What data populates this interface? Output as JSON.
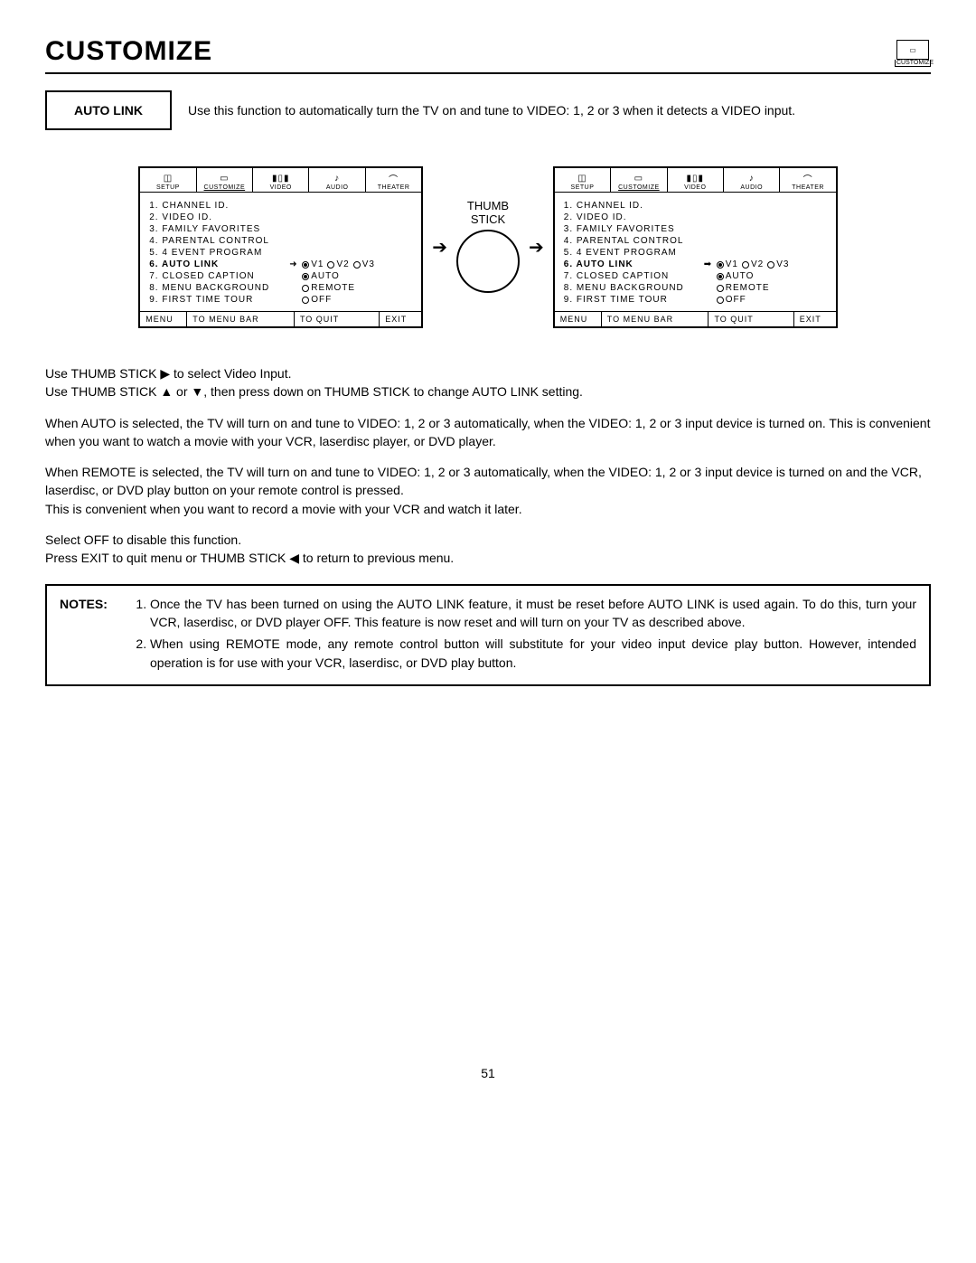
{
  "title": "CUSTOMIZE",
  "corner_label": "CUSTOMIZE",
  "intro": {
    "box_label": "AUTO LINK",
    "text": "Use this function to automatically turn the TV on and tune to VIDEO: 1, 2 or 3 when it detects a VIDEO input."
  },
  "thumb_label_top": "THUMB",
  "thumb_label_bot": "STICK",
  "tabs": [
    "SETUP",
    "CUSTOMIZE",
    "VIDEO",
    "AUDIO",
    "THEATER"
  ],
  "tab_icons": [
    "◫",
    "▭",
    "▮▯▮",
    "♪",
    "⌒"
  ],
  "menu_left": {
    "items": [
      {
        "n": "1.",
        "lab": "CHANNEL ID."
      },
      {
        "n": "2.",
        "lab": "VIDEO ID."
      },
      {
        "n": "3.",
        "lab": "FAMILY FAVORITES"
      },
      {
        "n": "4.",
        "lab": "PARENTAL CONTROL"
      },
      {
        "n": "5.",
        "lab": "4 EVENT PROGRAM"
      },
      {
        "n": "6.",
        "lab": "AUTO LINK",
        "bold": true,
        "arrow": true,
        "opts": [
          {
            "t": "V1",
            "sel": true
          },
          {
            "t": "V2"
          },
          {
            "t": "V3"
          }
        ]
      },
      {
        "n": "7.",
        "lab": "CLOSED CAPTION",
        "opts": [
          {
            "t": "AUTO",
            "sel": true
          }
        ]
      },
      {
        "n": "8.",
        "lab": "MENU BACKGROUND",
        "opts": [
          {
            "t": "REMOTE"
          }
        ]
      },
      {
        "n": "9.",
        "lab": "FIRST TIME TOUR",
        "opts": [
          {
            "t": "OFF"
          }
        ]
      }
    ]
  },
  "menu_right": {
    "items": [
      {
        "n": "1.",
        "lab": "CHANNEL ID."
      },
      {
        "n": "2.",
        "lab": "VIDEO ID."
      },
      {
        "n": "3.",
        "lab": "FAMILY FAVORITES"
      },
      {
        "n": "4.",
        "lab": "PARENTAL CONTROL"
      },
      {
        "n": "5.",
        "lab": "4 EVENT PROGRAM"
      },
      {
        "n": "6.",
        "lab": "AUTO LINK",
        "bold": true,
        "arrow": true,
        "solid_arrow": true,
        "opts": [
          {
            "t": "V1",
            "sel": true
          },
          {
            "t": "V2"
          },
          {
            "t": "V3"
          }
        ]
      },
      {
        "n": "7.",
        "lab": "CLOSED CAPTION",
        "opts": [
          {
            "t": "AUTO",
            "sel": true
          }
        ]
      },
      {
        "n": "8.",
        "lab": "MENU BACKGROUND",
        "opts": [
          {
            "t": "REMOTE"
          }
        ]
      },
      {
        "n": "9.",
        "lab": "FIRST TIME TOUR",
        "opts": [
          {
            "t": "OFF"
          }
        ]
      }
    ]
  },
  "footer": {
    "f1": "MENU",
    "f2": "TO MENU BAR",
    "f3": "TO QUIT",
    "f4": "EXIT"
  },
  "body": {
    "p1": "Use THUMB STICK ▶ to select Video Input.",
    "p2": "Use THUMB STICK ▲ or ▼, then press down on THUMB STICK to change AUTO LINK setting.",
    "p3": "When AUTO is selected, the TV will turn on and tune to VIDEO: 1, 2 or 3 automatically, when the VIDEO: 1, 2 or 3 input device is turned on. This is convenient when you want to watch a movie with your VCR, laserdisc player, or DVD player.",
    "p4": "When REMOTE is selected, the TV will turn on and tune to VIDEO: 1, 2 or 3 automatically, when the VIDEO: 1, 2 or 3 input device is turned on and the VCR, laserdisc, or DVD play button on your remote control is pressed.",
    "p5": "This is convenient when you want to record a movie with your VCR and watch it later.",
    "p6": "Select OFF to disable this function.",
    "p7": "Press EXIT to quit menu or THUMB STICK ◀ to return to previous menu."
  },
  "notes": {
    "header": "NOTES:",
    "items": [
      "Once the TV has been turned on using the AUTO LINK feature, it must be reset before AUTO LINK is used again. To do this, turn your VCR, laserdisc, or DVD player OFF. This feature is now reset and will turn on your TV as described above.",
      "When using REMOTE mode, any remote control button will substitute for your video input device play button. However, intended operation is for use with your VCR, laserdisc, or DVD play button."
    ]
  },
  "page_num": "51"
}
